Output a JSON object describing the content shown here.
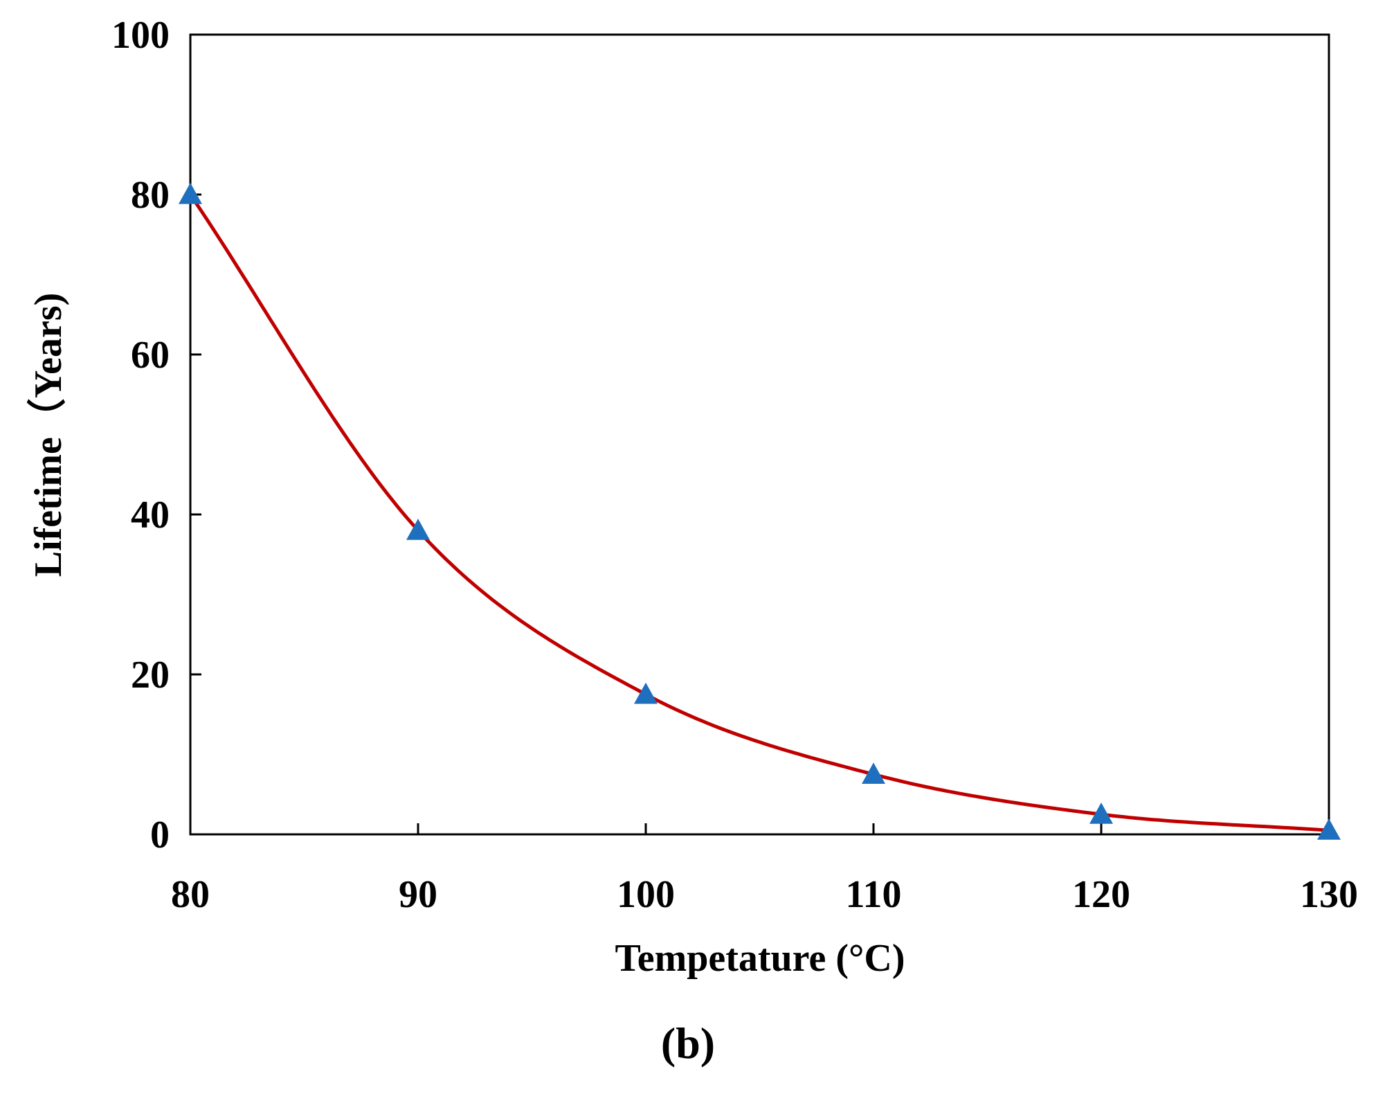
{
  "chart_data": {
    "type": "line",
    "title": "",
    "xlabel": "Tempetature (°C)",
    "ylabel": "Lifetime（Years)",
    "panel_label": "(b)",
    "xlim": [
      80,
      130
    ],
    "ylim": [
      0,
      100
    ],
    "xticks": [
      "80",
      "90",
      "100",
      "110",
      "120",
      "130"
    ],
    "yticks": [
      "0",
      "20",
      "40",
      "60",
      "80",
      "100"
    ],
    "grid": false,
    "legend": "none",
    "series": [
      {
        "name": "Lifetime",
        "marker": "triangle",
        "marker_color": "#1f6fbf",
        "line_color": "#c00000",
        "x": [
          80,
          90,
          100,
          110,
          120,
          130
        ],
        "y": [
          80,
          38,
          17.5,
          7.5,
          2.5,
          0.5
        ]
      }
    ]
  }
}
